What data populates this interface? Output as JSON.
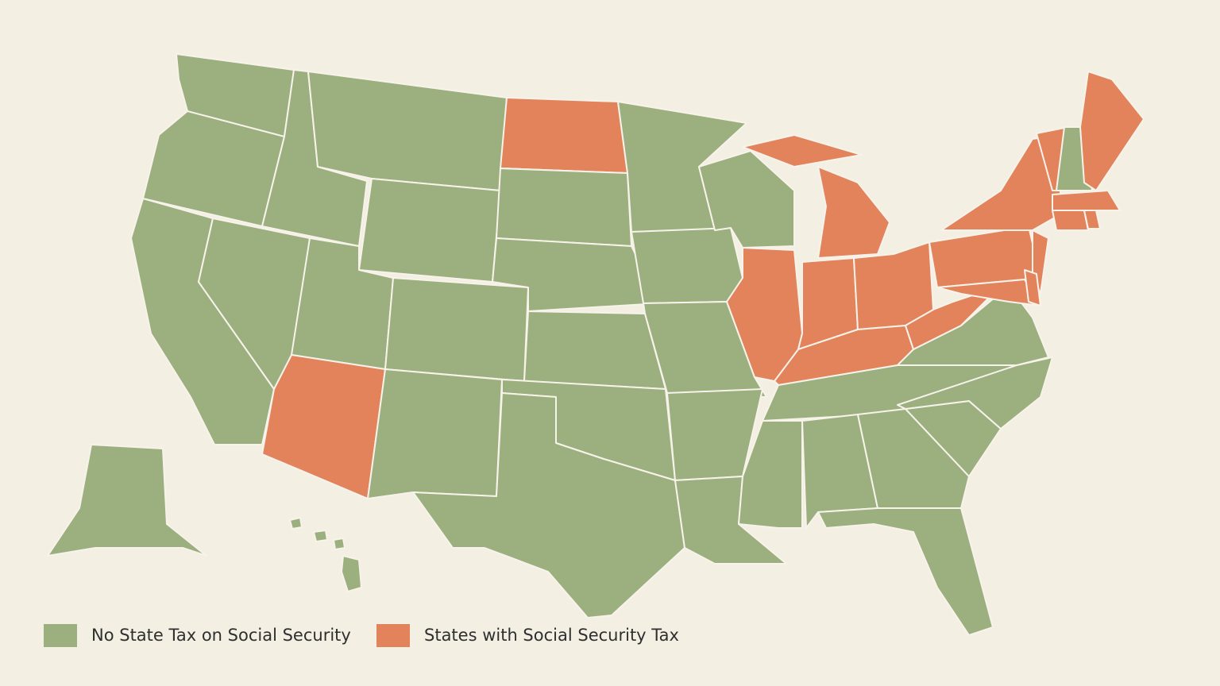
{
  "legend": {
    "items": [
      {
        "label": "No State Tax on Social Security",
        "color": "#9caf7f"
      },
      {
        "label": "States with Social Security Tax",
        "color": "#e2835c"
      }
    ]
  }
}
